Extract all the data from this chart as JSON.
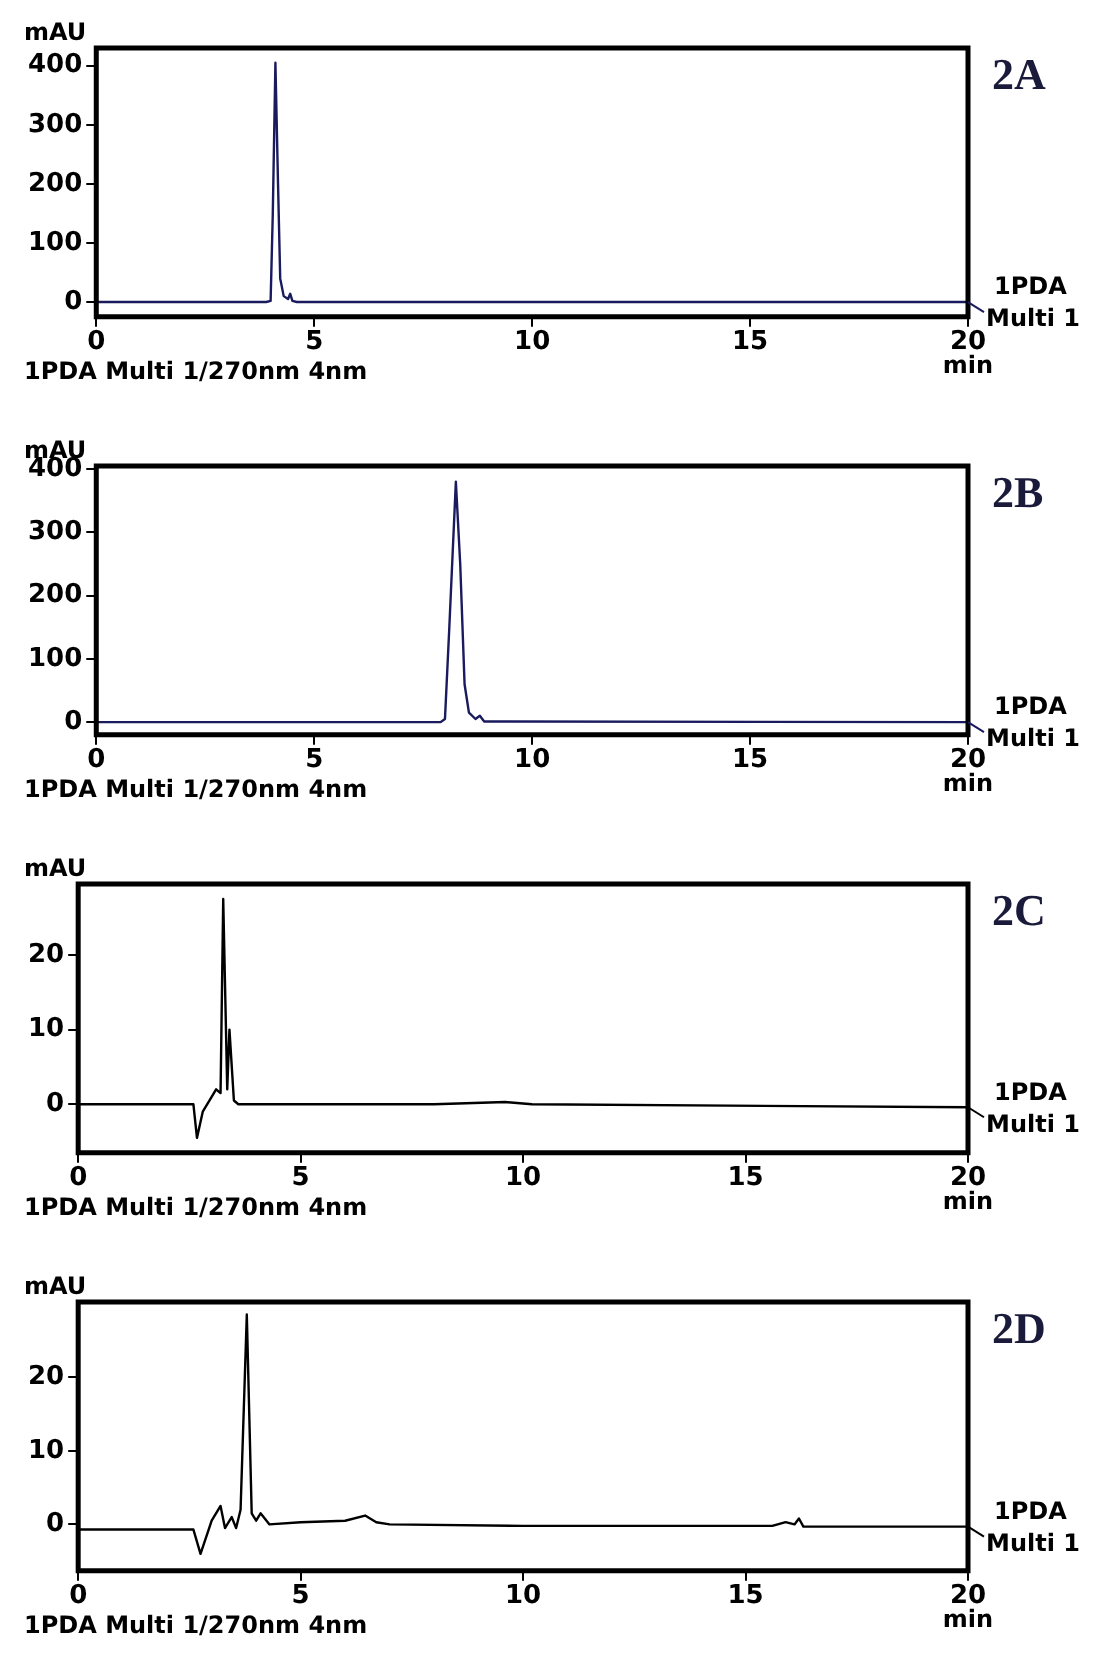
{
  "chart_data": [
    {
      "type": "line",
      "title": "2A",
      "xlabel": "min",
      "ylabel": "mAU",
      "xlim": [
        0,
        20
      ],
      "xticks": [
        0,
        5,
        10,
        15,
        20
      ],
      "ylim": [
        -25,
        430
      ],
      "yticks": [
        0,
        100,
        200,
        300,
        400
      ],
      "grid": false,
      "legend": "right",
      "marker": "none",
      "annotations": [
        "1PDA Multi 1/270nm 4nm"
      ],
      "series": [
        {
          "name": "1PDA Multi 1",
          "color": "#1a1a5e",
          "x": [
            0,
            3.9,
            4.0,
            4.05,
            4.11,
            4.17,
            4.22,
            4.3,
            4.4,
            4.45,
            4.5,
            4.6,
            20
          ],
          "values": [
            0,
            0,
            2,
            150,
            405,
            200,
            40,
            10,
            5,
            14,
            2,
            0,
            0
          ]
        }
      ]
    },
    {
      "type": "line",
      "title": "2B",
      "xlabel": "min",
      "ylabel": "mAU",
      "xlim": [
        0,
        20
      ],
      "xticks": [
        0,
        5,
        10,
        15,
        20
      ],
      "ylim": [
        -20,
        405
      ],
      "yticks": [
        0,
        100,
        200,
        300,
        400
      ],
      "grid": false,
      "legend": "right",
      "marker": "none",
      "annotations": [
        "1PDA Multi 1/270nm 4nm"
      ],
      "series": [
        {
          "name": "1PDA Multi 1",
          "color": "#1a1a5e",
          "x": [
            0,
            7.9,
            8.0,
            8.1,
            8.25,
            8.35,
            8.45,
            8.55,
            8.7,
            8.8,
            8.9,
            20
          ],
          "values": [
            0,
            0,
            5,
            150,
            380,
            250,
            60,
            15,
            5,
            10,
            1,
            0
          ]
        }
      ]
    },
    {
      "type": "line",
      "title": "2C",
      "xlabel": "min",
      "ylabel": "mAU",
      "xlim": [
        0,
        20
      ],
      "xticks": [
        0,
        5,
        10,
        15,
        20
      ],
      "ylim": [
        -6.5,
        29.5
      ],
      "yticks": [
        0,
        10,
        20
      ],
      "grid": false,
      "legend": "right",
      "marker": "none",
      "annotations": [
        "1PDA Multi 1/270nm 4nm"
      ],
      "series": [
        {
          "name": "1PDA Multi 1",
          "color": "#000000",
          "x": [
            0,
            2.59,
            2.67,
            2.8,
            3.0,
            3.1,
            3.2,
            3.26,
            3.35,
            3.4,
            3.5,
            3.6,
            8,
            9.6,
            10.2,
            20
          ],
          "values": [
            0,
            0,
            -4.5,
            -1,
            1,
            2,
            1.5,
            27.5,
            2,
            10,
            0.5,
            0,
            0,
            0.3,
            0,
            -0.4
          ]
        }
      ]
    },
    {
      "type": "line",
      "title": "2D",
      "xlabel": "min",
      "ylabel": "mAU",
      "xlim": [
        0,
        20
      ],
      "xticks": [
        0,
        5,
        10,
        15,
        20
      ],
      "ylim": [
        -6.3,
        30.2
      ],
      "yticks": [
        0,
        10,
        20
      ],
      "grid": false,
      "legend": "right",
      "marker": "none",
      "annotations": [
        "1PDA Multi 1/270nm 4nm"
      ],
      "series": [
        {
          "name": "1PDA Multi 1",
          "color": "#000000",
          "x": [
            0,
            2.59,
            2.75,
            3.0,
            3.2,
            3.3,
            3.45,
            3.55,
            3.65,
            3.79,
            3.9,
            4.0,
            4.1,
            4.3,
            5,
            6,
            6.45,
            6.7,
            7,
            10,
            15.6,
            15.9,
            16.1,
            16.2,
            16.3,
            20
          ],
          "values": [
            -0.7,
            -0.7,
            -4,
            0.5,
            2.5,
            -0.5,
            1,
            -0.5,
            2,
            28.5,
            1.5,
            0.5,
            1.5,
            0,
            0.3,
            0.5,
            1.2,
            0.3,
            0,
            -0.2,
            -0.2,
            0.3,
            0,
            0.8,
            -0.3,
            -0.3
          ]
        }
      ]
    }
  ]
}
